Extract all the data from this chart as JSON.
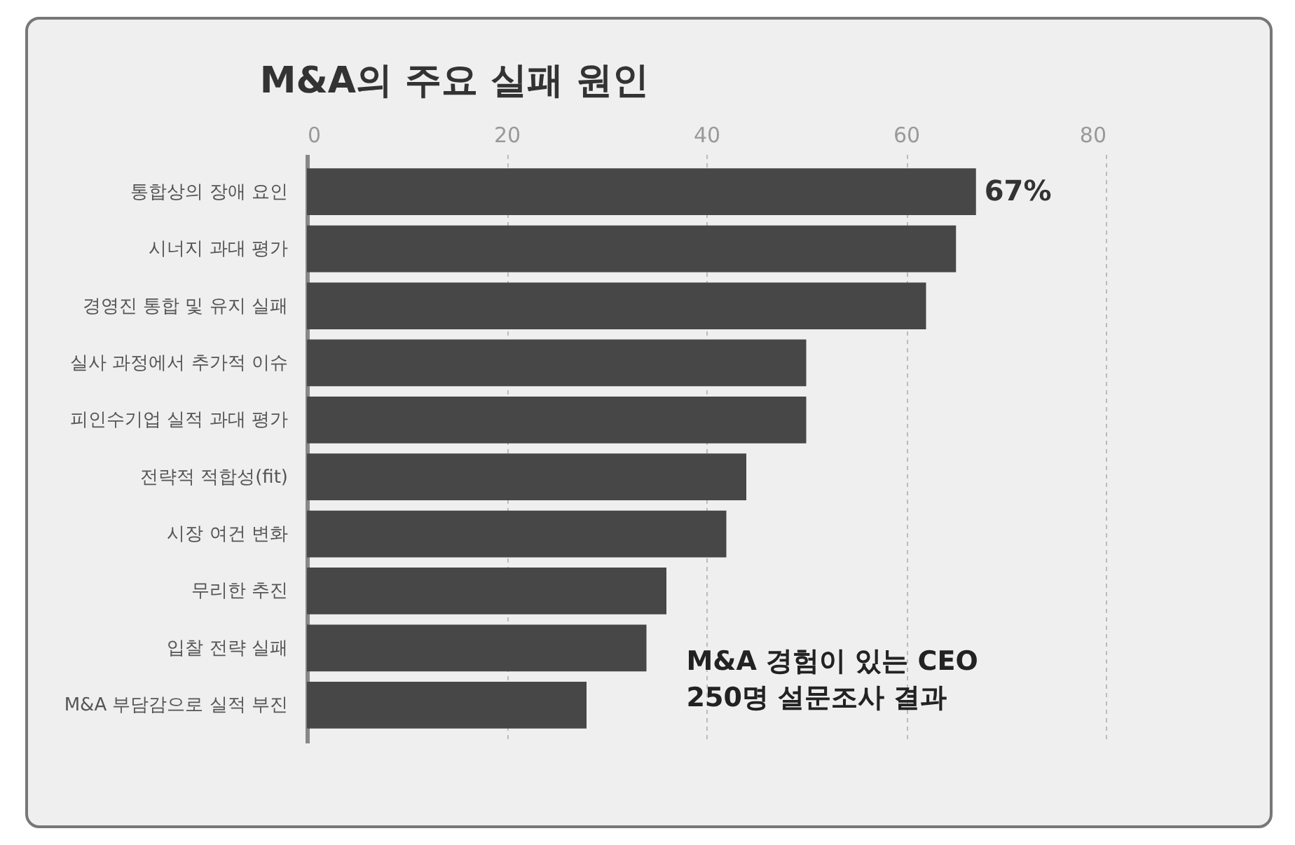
{
  "chart_data": {
    "type": "bar",
    "orientation": "horizontal",
    "title": "M&A의 주요 실패 원인",
    "categories": [
      "통합상의 장애 요인",
      "시너지 과대 평가",
      "경영진 통합 및 유지 실패",
      "실사 과정에서 추가적 이슈",
      "피인수기업 실적 과대 평가",
      "전략적 적합성(fit)",
      "시장 여건 변화",
      "무리한 추진",
      "입찰 전략 실패",
      "M&A 부담감으로 실적 부진"
    ],
    "values": [
      67,
      65,
      62,
      50,
      50,
      44,
      42,
      36,
      34,
      28
    ],
    "value_labels": [
      "67%",
      null,
      null,
      null,
      null,
      null,
      null,
      null,
      null,
      null
    ],
    "color": "#474747",
    "xlim": [
      0,
      80
    ],
    "xticks": [
      0,
      20,
      40,
      60,
      80
    ],
    "grid": "x",
    "annotations": [
      "M&A 경험이 있는 CEO\n250명 설문조사 결과"
    ]
  }
}
